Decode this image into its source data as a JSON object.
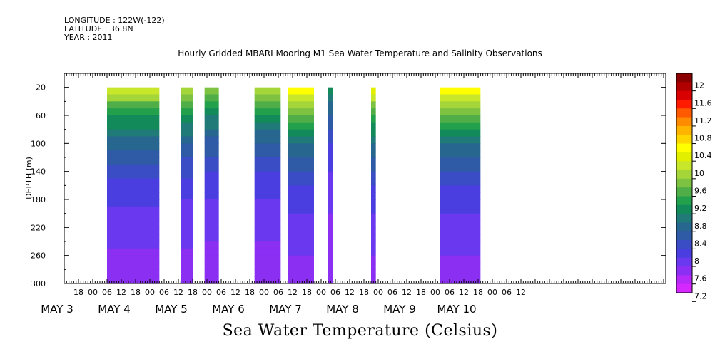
{
  "header": {
    "longitude": "LONGITUDE : 122W(-122)",
    "latitude": "LATITUDE : 36.8N",
    "year": "YEAR : 2011"
  },
  "chart_data": {
    "type": "heatmap",
    "title": "Hourly Gridded MBARI Mooring M1 Sea Water Temperature and Salinity Observations",
    "colorbar_title": "Sea Water Temperature (Celsius)",
    "ylabel": "DEPTH (m)",
    "y_ticks": [
      20,
      60,
      100,
      140,
      180,
      220,
      260,
      300
    ],
    "ylim": [
      300,
      0
    ],
    "x_hour_ticks": [
      "18",
      "00",
      "06",
      "12",
      "18",
      "00",
      "06",
      "12",
      "18",
      "00",
      "06",
      "12",
      "18",
      "00",
      "06",
      "12",
      "18",
      "00",
      "06",
      "12",
      "18",
      "00",
      "06",
      "12",
      "18",
      "00",
      "06",
      "12",
      "18",
      "00",
      "06",
      "12"
    ],
    "x_day_labels": [
      "MAY 3",
      "MAY 4",
      "MAY 5",
      "MAY 6",
      "MAY 7",
      "MAY 8",
      "MAY 9",
      "MAY 10"
    ],
    "colorbar_levels": [
      "12",
      "11.6",
      "11.2",
      "10.8",
      "10.4",
      "10",
      "9.6",
      "9.2",
      "8.8",
      "8.4",
      "8",
      "7.6",
      "7.2"
    ],
    "colors": [
      "#8b0000",
      "#b00000",
      "#d80000",
      "#ff1a00",
      "#ff5a00",
      "#ff8c00",
      "#ffb400",
      "#ffd700",
      "#ffff00",
      "#e2f000",
      "#c8e62a",
      "#a4d63a",
      "#7ec241",
      "#4fae47",
      "#23a04b",
      "#138a5a",
      "#1f7a78",
      "#27678f",
      "#2e5aa6",
      "#3a4dc4",
      "#4a3ee0",
      "#6a38ee",
      "#8b2ff3",
      "#b52af7",
      "#d428ff"
    ],
    "gap_color": "#ffffff",
    "segments": [
      {
        "start": "May 4 06:00",
        "end": "May 5 04:00",
        "surface_temp": 10.1
      },
      {
        "start": "May 5 13:00",
        "end": "May 5 18:00",
        "surface_temp": 10.0
      },
      {
        "start": "May 5 23:00",
        "end": "May 6 05:00",
        "surface_temp": 9.8
      },
      {
        "start": "May 6 20:00",
        "end": "May 7 07:00",
        "surface_temp": 9.9
      },
      {
        "start": "May 7 10:00",
        "end": "May 7 21:00",
        "surface_temp": 10.5
      },
      {
        "start": "May 8 03:00",
        "end": "May 8 05:00",
        "surface_temp": 9.0
      },
      {
        "start": "May 8 21:00",
        "end": "May 8 23:00",
        "surface_temp": 10.4
      },
      {
        "start": "May 10 02:00",
        "end": "May 10 19:00",
        "surface_temp": 10.5
      }
    ]
  }
}
